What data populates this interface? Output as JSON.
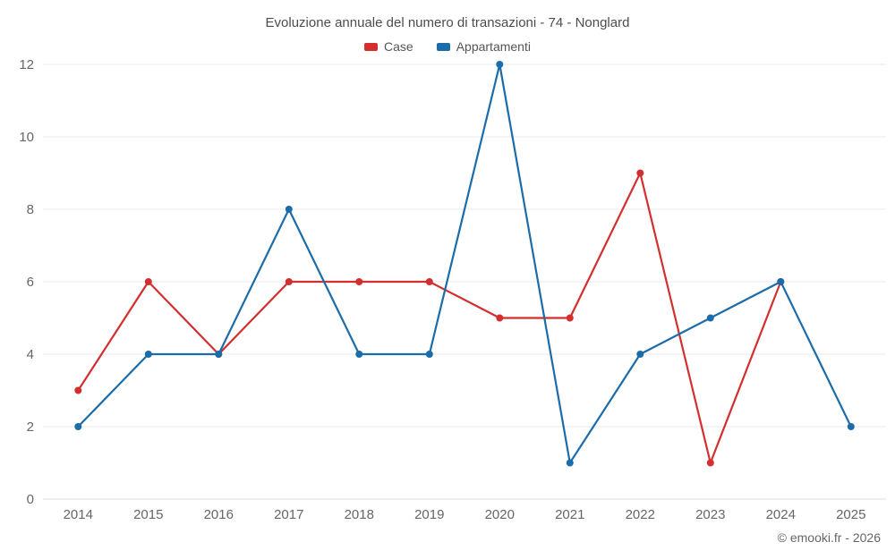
{
  "title": "Evoluzione annuale del numero di transazioni - 74 - Nonglard",
  "footer": "© emooki.fr - 2026",
  "colors": {
    "case": "#d32f2f",
    "appartamenti": "#1b6ca8",
    "grid": "#e8e8e8",
    "axis_text": "#666666",
    "title_text": "#4c4c4c"
  },
  "chart_data": {
    "type": "line",
    "title": "Evoluzione annuale del numero di transazioni - 74 - Nonglard",
    "x": [
      2014,
      2015,
      2016,
      2017,
      2018,
      2019,
      2020,
      2021,
      2022,
      2023,
      2024,
      2025
    ],
    "series": [
      {
        "name": "Case",
        "color": "#d32f2f",
        "values": [
          3,
          6,
          4,
          6,
          6,
          6,
          5,
          5,
          9,
          1,
          6,
          null
        ]
      },
      {
        "name": "Appartamenti",
        "color": "#1b6ca8",
        "values": [
          2,
          4,
          4,
          8,
          4,
          4,
          12,
          1,
          4,
          5,
          6,
          2
        ]
      }
    ],
    "ylim": [
      0,
      12
    ],
    "yticks": [
      0,
      2,
      4,
      6,
      8,
      10,
      12
    ],
    "xlabel": "",
    "ylabel": "",
    "grid": "horizontal",
    "legend_position": "top",
    "marker": "circle"
  }
}
